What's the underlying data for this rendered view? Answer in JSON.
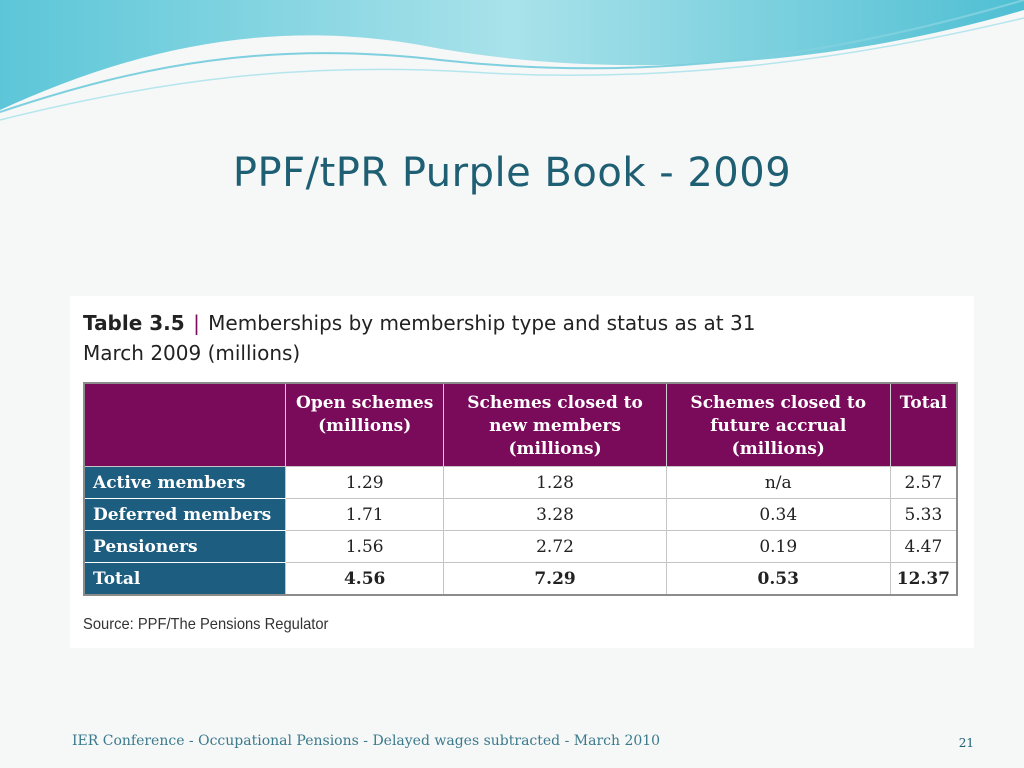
{
  "slide": {
    "title": "PPF/tPR Purple Book - 2009",
    "footer": "IER Conference - Occupational Pensions - Delayed wages subtracted - March 2010",
    "page_number": "21"
  },
  "table": {
    "caption_number": "Table 3.5",
    "caption_separator": "|",
    "caption_text": "Memberships by membership type and status as at 31 March 2009 (millions)",
    "columns": [
      "Open schemes (millions)",
      "Schemes closed to new members (millions)",
      "Schemes closed to future accrual (millions)",
      "Total"
    ],
    "rows": [
      {
        "label": "Active members",
        "values": [
          "1.29",
          "1.28",
          "n/a",
          "2.57"
        ]
      },
      {
        "label": "Deferred members",
        "values": [
          "1.71",
          "3.28",
          "0.34",
          "5.33"
        ]
      },
      {
        "label": "Pensioners",
        "values": [
          "1.56",
          "2.72",
          "0.19",
          "4.47"
        ]
      },
      {
        "label": "Total",
        "values": [
          "4.56",
          "7.29",
          "0.53",
          "12.37"
        ]
      }
    ],
    "source": "Source: PPF/The Pensions Regulator"
  },
  "colors": {
    "header_purple": "#7a0a5a",
    "row_label_blue": "#1d5d80",
    "title_teal": "#1f5f73"
  }
}
